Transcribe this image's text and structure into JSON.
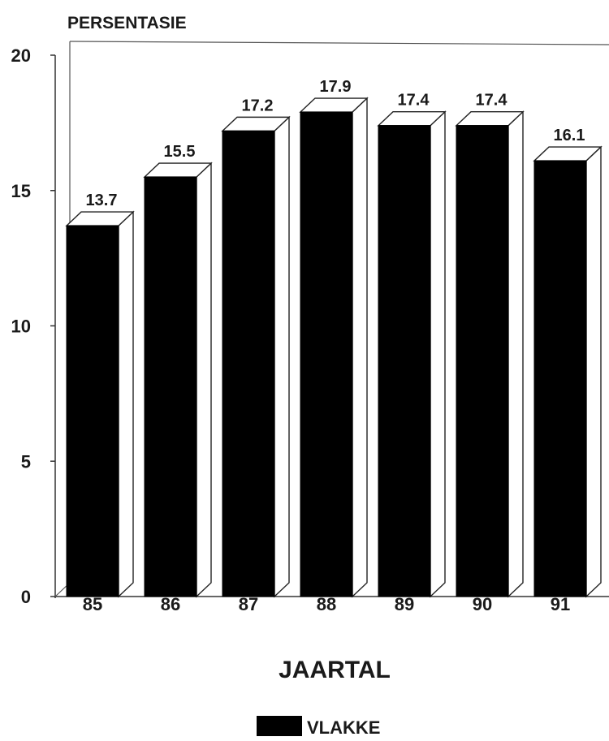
{
  "chart_data": {
    "type": "bar",
    "ylabel": "PERSENTASIE",
    "xlabel": "JAARTAL",
    "categories": [
      "85",
      "86",
      "87",
      "88",
      "89",
      "90",
      "91"
    ],
    "series": [
      {
        "name": "VLAKKE",
        "values": [
          13.7,
          15.5,
          17.2,
          17.9,
          17.4,
          17.4,
          16.1
        ]
      }
    ],
    "value_labels": [
      "13.7",
      "15.5",
      "17.2",
      "17.9",
      "17.4",
      "17.4",
      "16.1"
    ],
    "ylim": [
      0,
      20
    ],
    "yticks": [
      "0",
      "5",
      "10",
      "15",
      "20"
    ],
    "grid": false,
    "legend_position": "bottom-center",
    "bar_color": "#000000",
    "face_color": "#ffffff"
  }
}
